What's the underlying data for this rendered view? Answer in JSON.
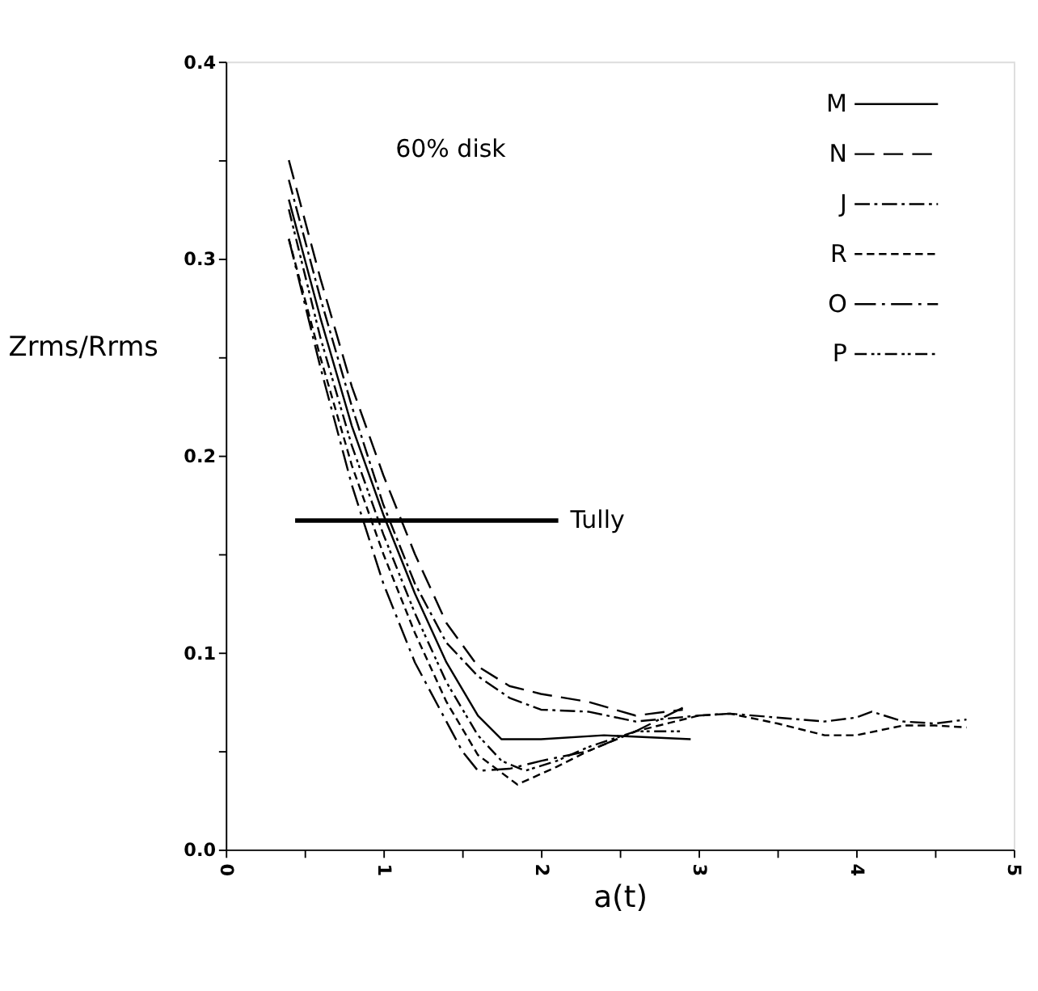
{
  "chart_data": {
    "type": "line",
    "xlabel": "a(t)",
    "ylabel": "Zrms/Rrms",
    "annotations": [
      "60% disk"
    ],
    "xlim": [
      0,
      5
    ],
    "ylim": [
      0,
      0.4
    ],
    "xticks": [
      0,
      {
        "value": 0.5,
        "label": null
      },
      1,
      {
        "value": 1.5,
        "label": null
      },
      2,
      {
        "value": 2.5,
        "label": null
      },
      3,
      {
        "value": 3.5,
        "label": null
      },
      4,
      {
        "value": 4.5,
        "label": null
      },
      5
    ],
    "yticks": [
      {
        "value": 0,
        "label": "0.0"
      },
      {
        "value": 0.05,
        "label": null
      },
      0.1,
      {
        "value": 0.15,
        "label": null
      },
      0.2,
      {
        "value": 0.25,
        "label": null
      },
      0.3,
      {
        "value": 0.35,
        "label": null
      },
      0.4
    ],
    "legend": "top right",
    "grid": false,
    "series": [
      {
        "name": "M",
        "color": "#000000",
        "line_style": "solid",
        "x": [
          0.4,
          0.6,
          0.8,
          1.0,
          1.2,
          1.4,
          1.6,
          1.75,
          2.0,
          2.4,
          2.95
        ],
        "values": [
          0.33,
          0.27,
          0.215,
          0.17,
          0.13,
          0.095,
          0.068,
          0.056,
          0.056,
          0.058,
          0.056
        ]
      },
      {
        "name": "N",
        "color": "#000000",
        "line_style": "longdash",
        "x": [
          0.4,
          0.6,
          0.8,
          1.0,
          1.2,
          1.4,
          1.6,
          1.8,
          2.0,
          2.3,
          2.6,
          2.9
        ],
        "values": [
          0.35,
          0.29,
          0.235,
          0.19,
          0.15,
          0.115,
          0.093,
          0.083,
          0.079,
          0.075,
          0.068,
          0.071
        ]
      },
      {
        "name": "J",
        "color": "#000000",
        "line_style": "dashdot",
        "x": [
          0.4,
          0.6,
          0.8,
          1.0,
          1.2,
          1.4,
          1.6,
          1.8,
          2.0,
          2.3,
          2.6,
          3.0,
          3.2,
          3.5,
          3.8,
          4.0,
          4.1,
          4.3,
          4.5,
          4.7
        ],
        "values": [
          0.34,
          0.28,
          0.225,
          0.175,
          0.135,
          0.105,
          0.088,
          0.077,
          0.071,
          0.07,
          0.065,
          0.068,
          0.069,
          0.067,
          0.065,
          0.067,
          0.07,
          0.065,
          0.064,
          0.066
        ]
      },
      {
        "name": "R",
        "color": "#000000",
        "line_style": "dashed",
        "x": [
          0.4,
          0.6,
          0.8,
          1.0,
          1.2,
          1.4,
          1.6,
          1.85,
          2.1,
          2.3,
          2.6,
          3.0,
          3.2,
          3.5,
          3.8,
          4.0,
          4.3,
          4.5,
          4.7
        ],
        "values": [
          0.31,
          0.25,
          0.195,
          0.15,
          0.11,
          0.075,
          0.048,
          0.033,
          0.042,
          0.05,
          0.06,
          0.068,
          0.069,
          0.064,
          0.058,
          0.058,
          0.063,
          0.063,
          0.062
        ]
      },
      {
        "name": "O",
        "color": "#000000",
        "line_style": "longdashdot",
        "x": [
          0.4,
          0.6,
          0.8,
          1.0,
          1.2,
          1.4,
          1.5,
          1.6,
          1.8,
          2.0,
          2.3,
          2.6,
          2.9
        ],
        "values": [
          0.31,
          0.245,
          0.185,
          0.135,
          0.095,
          0.065,
          0.05,
          0.04,
          0.041,
          0.045,
          0.05,
          0.06,
          0.072
        ]
      },
      {
        "name": "P",
        "color": "#000000",
        "line_style": "dashdotdot",
        "x": [
          0.4,
          0.6,
          0.8,
          1.0,
          1.2,
          1.4,
          1.6,
          1.75,
          1.9,
          2.1,
          2.3,
          2.6,
          2.9
        ],
        "values": [
          0.325,
          0.26,
          0.205,
          0.16,
          0.12,
          0.085,
          0.058,
          0.045,
          0.04,
          0.045,
          0.052,
          0.06,
          0.06
        ]
      },
      {
        "name": "Tully",
        "color": "#000000",
        "line_style": "solid",
        "x": [
          0.44,
          2.11
        ],
        "values": [
          0.167,
          0.167
        ]
      }
    ]
  }
}
